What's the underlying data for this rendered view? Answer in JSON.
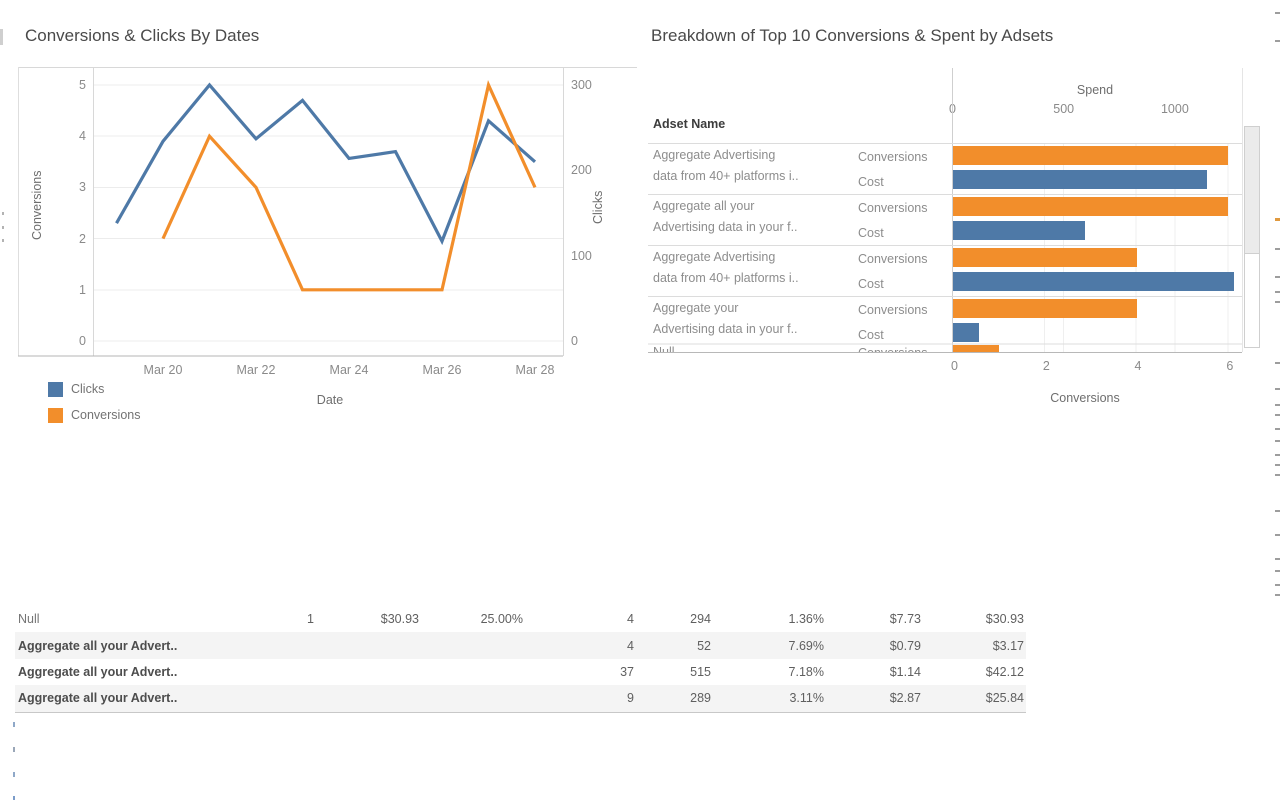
{
  "chart_data": [
    {
      "type": "line",
      "title": "Conversions & Clicks By Dates",
      "xlabel": "Date",
      "ylabel_left": "Conversions",
      "ylabel_right": "Clicks",
      "x_tick_labels": [
        "Mar 20",
        "Mar 22",
        "Mar 24",
        "Mar 26",
        "Mar 28"
      ],
      "ylim_left": [
        0,
        5
      ],
      "yticks_left": [
        0,
        1,
        2,
        3,
        4,
        5
      ],
      "ylim_right": [
        0,
        300
      ],
      "yticks_right": [
        0,
        100,
        200,
        300
      ],
      "grid": true,
      "legend_position": "bottom-left",
      "series": [
        {
          "name": "Clicks",
          "color": "#4e79a7",
          "axis": "right",
          "dates": [
            "Mar 19",
            "Mar 20",
            "Mar 21",
            "Mar 22",
            "Mar 23",
            "Mar 24",
            "Mar 25",
            "Mar 26",
            "Mar 27",
            "Mar 28"
          ],
          "values": [
            138,
            234,
            300,
            237,
            282,
            214,
            222,
            117,
            258,
            210
          ]
        },
        {
          "name": "Conversions",
          "color": "#f28e2b",
          "axis": "left",
          "dates": [
            "Mar 20",
            "Mar 21",
            "Mar 22",
            "Mar 23",
            "Mar 24",
            "Mar 25",
            "Mar 26",
            "Mar 27",
            "Mar 28"
          ],
          "values": [
            2,
            4,
            3,
            1,
            1,
            1,
            1,
            5,
            3
          ]
        }
      ]
    },
    {
      "type": "bar",
      "title": "Breakdown of Top 10 Conversions & Spent by Adsets",
      "orientation": "horizontal",
      "row_header": "Adset Name",
      "top_axis": {
        "label": "Spend",
        "ticks": [
          0,
          500,
          1000
        ],
        "max": 1304
      },
      "bottom_axis": {
        "label": "Conversions",
        "ticks": [
          0,
          2,
          4,
          6
        ],
        "max": 6.32
      },
      "measure_labels": [
        "Conversions",
        "Cost"
      ],
      "colors": {
        "Conversions": "#f28e2b",
        "Cost": "#4e79a7"
      },
      "rows": [
        {
          "name_lines": [
            "Aggregate Advertising",
            "data from 40+ platforms i.."
          ],
          "conversions": 6,
          "cost": 1140
        },
        {
          "name_lines": [
            "Aggregate all your",
            "Advertising data in your f.."
          ],
          "conversions": 6,
          "cost": 595
        },
        {
          "name_lines": [
            "Aggregate Advertising",
            "data from 40+ platforms i.."
          ],
          "conversions": 4,
          "cost": 1265
        },
        {
          "name_lines": [
            "Aggregate your",
            "Advertising data in your f.."
          ],
          "conversions": 4,
          "cost": 117
        },
        {
          "name_lines": [
            "Null"
          ],
          "conversions": 1,
          "cost": null,
          "partial": true
        }
      ]
    },
    {
      "type": "table",
      "rows": [
        {
          "name": "Null",
          "values": [
            "1",
            "$30.93",
            "25.00%",
            "4",
            "294",
            "1.36%",
            "$7.73",
            "$30.93"
          ]
        },
        {
          "name": "Aggregate all your Advert..",
          "values": [
            "",
            "",
            "",
            "4",
            "52",
            "7.69%",
            "$0.79",
            "$3.17"
          ]
        },
        {
          "name": "Aggregate all your Advert..",
          "values": [
            "",
            "",
            "",
            "37",
            "515",
            "7.18%",
            "$1.14",
            "$42.12"
          ]
        },
        {
          "name": "Aggregate all your Advert..",
          "values": [
            "",
            "",
            "",
            "9",
            "289",
            "3.11%",
            "$2.87",
            "$25.84"
          ]
        }
      ]
    }
  ]
}
